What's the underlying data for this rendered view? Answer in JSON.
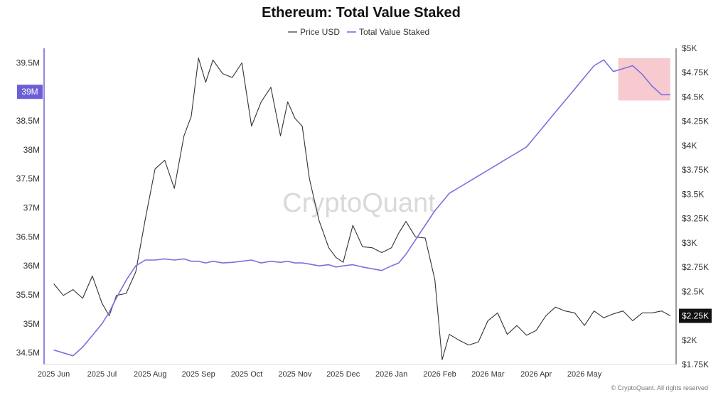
{
  "chart_data": {
    "type": "line",
    "title": "Ethereum: Total Value Staked",
    "legend": [
      "Price USD",
      "Total Value Staked"
    ],
    "legend_position": "top-center",
    "grid": false,
    "watermark": "CryptoQuant",
    "footer": "© CryptoQuant. All rights reserved",
    "colors": {
      "price": "#333333",
      "staked": "#7b70dd",
      "highlight": "#f4b8c0",
      "left_badge": "#6c5fd6",
      "right_badge": "#111111",
      "axis_left": "#6c5fd6"
    },
    "x_ticks": [
      "2025 Jun",
      "2025 Jul",
      "2025 Aug",
      "2025 Sep",
      "2025 Oct",
      "2025 Nov",
      "2025 Dec",
      "2026 Jan",
      "2026 Feb",
      "2026 Mar",
      "2026 Apr",
      "2026 May"
    ],
    "y_left": {
      "label": "",
      "ticks": [
        "34.5M",
        "35M",
        "35.5M",
        "36M",
        "36.5M",
        "37M",
        "37.5M",
        "38M",
        "38.5M",
        "39M",
        "39.5M"
      ],
      "tick_values": [
        34.5,
        35,
        35.5,
        36,
        36.5,
        37,
        37.5,
        38,
        38.5,
        39,
        39.5
      ],
      "range": [
        34.3,
        39.75
      ],
      "current_label": "39M",
      "current_value": 39
    },
    "y_right": {
      "label": "",
      "ticks": [
        "$1.75K",
        "$2K",
        "$2.25K",
        "$2.5K",
        "$2.75K",
        "$3K",
        "$3.25K",
        "$3.5K",
        "$3.75K",
        "$4K",
        "$4.25K",
        "$4.5K",
        "$4.75K",
        "$5K"
      ],
      "tick_values": [
        1750,
        2000,
        2250,
        2500,
        2750,
        3000,
        3250,
        3500,
        3750,
        4000,
        4250,
        4500,
        4750,
        5000
      ],
      "range": [
        1750,
        5000
      ],
      "current_label": "$2.25K",
      "current_value": 2250
    },
    "highlight_region": {
      "x_from": 11.7,
      "x_to": 12.78,
      "y_from": 38.85,
      "y_to": 39.58
    },
    "series": [
      {
        "name": "Price USD",
        "axis": "right",
        "x": [
          0,
          0.2,
          0.4,
          0.6,
          0.8,
          1,
          1.15,
          1.3,
          1.5,
          1.7,
          1.9,
          2.1,
          2.3,
          2.5,
          2.7,
          2.85,
          3,
          3.15,
          3.3,
          3.5,
          3.7,
          3.9,
          4.1,
          4.3,
          4.5,
          4.7,
          4.85,
          5,
          5.15,
          5.3,
          5.5,
          5.7,
          5.85,
          6,
          6.2,
          6.4,
          6.6,
          6.8,
          7,
          7.15,
          7.3,
          7.5,
          7.7,
          7.9,
          8.05,
          8.2,
          8.4,
          8.6,
          8.8,
          9,
          9.2,
          9.4,
          9.6,
          9.8,
          10,
          10.2,
          10.4,
          10.6,
          10.8,
          11,
          11.2,
          11.4,
          11.6,
          11.8,
          12,
          12.2,
          12.4,
          12.6,
          12.78
        ],
        "y": [
          2580,
          2460,
          2520,
          2430,
          2660,
          2380,
          2250,
          2460,
          2480,
          2700,
          3250,
          3760,
          3850,
          3560,
          4100,
          4300,
          4900,
          4650,
          4880,
          4740,
          4700,
          4850,
          4200,
          4450,
          4600,
          4100,
          4450,
          4280,
          4200,
          3660,
          3230,
          2950,
          2850,
          2800,
          3180,
          2960,
          2950,
          2900,
          2950,
          3100,
          3220,
          3060,
          3050,
          2620,
          1800,
          2060,
          2000,
          1950,
          1980,
          2200,
          2280,
          2060,
          2150,
          2050,
          2100,
          2250,
          2340,
          2300,
          2280,
          2150,
          2300,
          2230,
          2270,
          2300,
          2200,
          2280,
          2280,
          2300,
          2250
        ]
      },
      {
        "name": "Total Value Staked",
        "axis": "left",
        "x": [
          0,
          0.2,
          0.4,
          0.6,
          0.8,
          1,
          1.15,
          1.3,
          1.5,
          1.7,
          1.9,
          2.1,
          2.3,
          2.5,
          2.7,
          2.85,
          3,
          3.15,
          3.3,
          3.5,
          3.7,
          3.9,
          4.1,
          4.3,
          4.5,
          4.7,
          4.85,
          5,
          5.15,
          5.3,
          5.5,
          5.7,
          5.85,
          6,
          6.2,
          6.4,
          6.6,
          6.8,
          7,
          7.15,
          7.3,
          7.5,
          7.7,
          7.9,
          8.05,
          8.2,
          8.4,
          8.6,
          8.8,
          9,
          9.2,
          9.4,
          9.6,
          9.8,
          10,
          10.2,
          10.4,
          10.6,
          10.8,
          11,
          11.2,
          11.4,
          11.6,
          11.8,
          12,
          12.2,
          12.4,
          12.6,
          12.78
        ],
        "y": [
          34.55,
          34.5,
          34.45,
          34.6,
          34.8,
          35.0,
          35.2,
          35.45,
          35.75,
          36.0,
          36.1,
          36.1,
          36.12,
          36.1,
          36.12,
          36.08,
          36.08,
          36.05,
          36.08,
          36.05,
          36.06,
          36.08,
          36.1,
          36.05,
          36.08,
          36.06,
          36.08,
          36.05,
          36.05,
          36.03,
          36.0,
          36.02,
          35.98,
          36.0,
          36.02,
          35.98,
          35.95,
          35.92,
          36.0,
          36.05,
          36.2,
          36.45,
          36.7,
          36.95,
          37.1,
          37.25,
          37.35,
          37.45,
          37.55,
          37.65,
          37.75,
          37.85,
          37.95,
          38.05,
          38.25,
          38.45,
          38.65,
          38.85,
          39.05,
          39.25,
          39.45,
          39.55,
          39.35,
          39.4,
          39.45,
          39.3,
          39.1,
          38.95,
          38.95
        ]
      }
    ]
  }
}
